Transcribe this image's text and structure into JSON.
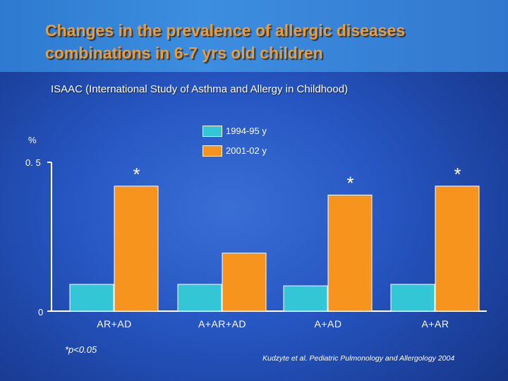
{
  "slide": {
    "title_line1": "Changes in the prevalence of allergic diseases",
    "title_line2": "combinations in 6-7 yrs old children",
    "subtitle": "ISAAC (International Study of Asthma and Allergy in Childhood)",
    "footnote": "*p<0.05",
    "source": "Kudzyte et al. Pediatric Pulmonology and Allergology 2004"
  },
  "colors": {
    "series_1994": "#33c6d6",
    "series_2001": "#f7941d",
    "title": "#f39a2b"
  },
  "chart_data": {
    "type": "bar",
    "title": "",
    "ylabel": "%",
    "xlabel": "",
    "ylim": [
      0,
      0.5
    ],
    "ytick_labels": [
      "0",
      "0. 5"
    ],
    "categories": [
      "AR+AD",
      "A+AR+AD",
      "A+AD",
      "A+AR"
    ],
    "series": [
      {
        "name": "1994-95 y",
        "values": [
          0.09,
          0.09,
          0.085,
          0.09
        ]
      },
      {
        "name": "2001-02 y",
        "values": [
          0.42,
          0.195,
          0.39,
          0.42
        ]
      }
    ],
    "significance": [
      "*",
      "",
      "*",
      "*"
    ],
    "legend_position": "top-center"
  }
}
